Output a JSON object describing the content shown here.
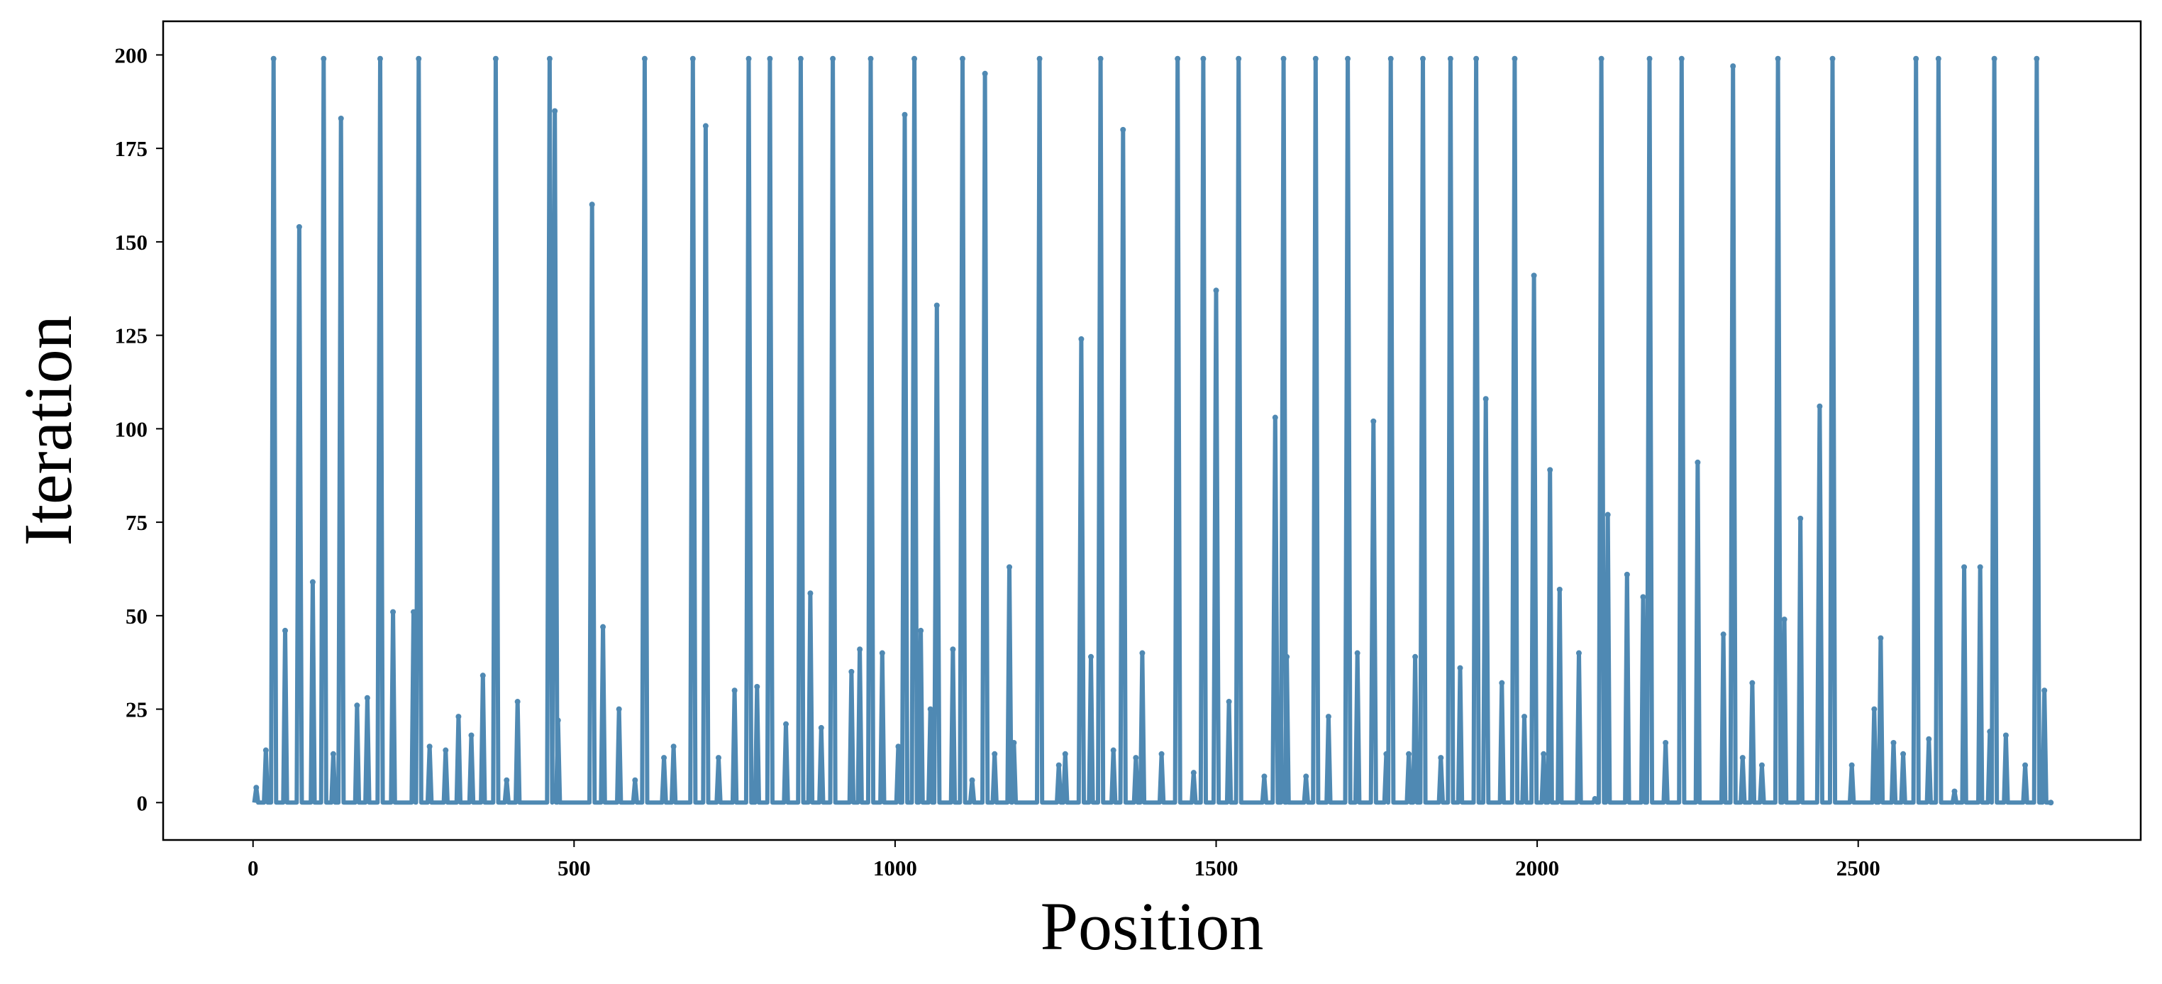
{
  "chart_data": {
    "type": "line",
    "title": "",
    "xlabel": "Position",
    "ylabel": "Iteration",
    "xlim": [
      -140,
      2940
    ],
    "ylim": [
      -10,
      209
    ],
    "xticks": [
      0,
      500,
      1000,
      1500,
      2000,
      2500
    ],
    "yticks": [
      0,
      25,
      50,
      75,
      100,
      125,
      150,
      175,
      200
    ],
    "grid": false,
    "legend": "none",
    "marker": "dot",
    "color": "#4f89b3",
    "peaks": [
      {
        "x": 5,
        "y": 4
      },
      {
        "x": 20,
        "y": 14
      },
      {
        "x": 32,
        "y": 199
      },
      {
        "x": 50,
        "y": 46
      },
      {
        "x": 72,
        "y": 154
      },
      {
        "x": 93,
        "y": 59
      },
      {
        "x": 110,
        "y": 199
      },
      {
        "x": 125,
        "y": 13
      },
      {
        "x": 137,
        "y": 183
      },
      {
        "x": 162,
        "y": 26
      },
      {
        "x": 178,
        "y": 28
      },
      {
        "x": 198,
        "y": 199
      },
      {
        "x": 218,
        "y": 51
      },
      {
        "x": 250,
        "y": 51
      },
      {
        "x": 258,
        "y": 199
      },
      {
        "x": 275,
        "y": 15
      },
      {
        "x": 300,
        "y": 14
      },
      {
        "x": 320,
        "y": 23
      },
      {
        "x": 340,
        "y": 18
      },
      {
        "x": 358,
        "y": 34
      },
      {
        "x": 378,
        "y": 199
      },
      {
        "x": 395,
        "y": 6
      },
      {
        "x": 412,
        "y": 27
      },
      {
        "x": 462,
        "y": 199
      },
      {
        "x": 470,
        "y": 185
      },
      {
        "x": 475,
        "y": 22
      },
      {
        "x": 528,
        "y": 160
      },
      {
        "x": 545,
        "y": 47
      },
      {
        "x": 570,
        "y": 25
      },
      {
        "x": 595,
        "y": 6
      },
      {
        "x": 610,
        "y": 199
      },
      {
        "x": 640,
        "y": 12
      },
      {
        "x": 655,
        "y": 15
      },
      {
        "x": 685,
        "y": 199
      },
      {
        "x": 705,
        "y": 181
      },
      {
        "x": 725,
        "y": 12
      },
      {
        "x": 750,
        "y": 30
      },
      {
        "x": 772,
        "y": 199
      },
      {
        "x": 785,
        "y": 31
      },
      {
        "x": 805,
        "y": 199
      },
      {
        "x": 830,
        "y": 21
      },
      {
        "x": 853,
        "y": 199
      },
      {
        "x": 868,
        "y": 56
      },
      {
        "x": 885,
        "y": 20
      },
      {
        "x": 903,
        "y": 199
      },
      {
        "x": 932,
        "y": 35
      },
      {
        "x": 945,
        "y": 41
      },
      {
        "x": 962,
        "y": 199
      },
      {
        "x": 980,
        "y": 40
      },
      {
        "x": 1005,
        "y": 15
      },
      {
        "x": 1015,
        "y": 184
      },
      {
        "x": 1030,
        "y": 199
      },
      {
        "x": 1040,
        "y": 46
      },
      {
        "x": 1055,
        "y": 25
      },
      {
        "x": 1065,
        "y": 133
      },
      {
        "x": 1090,
        "y": 41
      },
      {
        "x": 1105,
        "y": 199
      },
      {
        "x": 1120,
        "y": 6
      },
      {
        "x": 1140,
        "y": 195
      },
      {
        "x": 1155,
        "y": 13
      },
      {
        "x": 1178,
        "y": 63
      },
      {
        "x": 1185,
        "y": 16
      },
      {
        "x": 1225,
        "y": 199
      },
      {
        "x": 1255,
        "y": 10
      },
      {
        "x": 1265,
        "y": 13
      },
      {
        "x": 1290,
        "y": 124
      },
      {
        "x": 1305,
        "y": 39
      },
      {
        "x": 1320,
        "y": 199
      },
      {
        "x": 1340,
        "y": 14
      },
      {
        "x": 1355,
        "y": 180
      },
      {
        "x": 1375,
        "y": 12
      },
      {
        "x": 1385,
        "y": 40
      },
      {
        "x": 1415,
        "y": 13
      },
      {
        "x": 1440,
        "y": 199
      },
      {
        "x": 1465,
        "y": 8
      },
      {
        "x": 1480,
        "y": 199
      },
      {
        "x": 1500,
        "y": 137
      },
      {
        "x": 1520,
        "y": 27
      },
      {
        "x": 1535,
        "y": 199
      },
      {
        "x": 1575,
        "y": 7
      },
      {
        "x": 1592,
        "y": 103
      },
      {
        "x": 1605,
        "y": 199
      },
      {
        "x": 1610,
        "y": 39
      },
      {
        "x": 1640,
        "y": 7
      },
      {
        "x": 1655,
        "y": 199
      },
      {
        "x": 1675,
        "y": 23
      },
      {
        "x": 1705,
        "y": 199
      },
      {
        "x": 1720,
        "y": 40
      },
      {
        "x": 1745,
        "y": 102
      },
      {
        "x": 1765,
        "y": 13
      },
      {
        "x": 1772,
        "y": 199
      },
      {
        "x": 1800,
        "y": 13
      },
      {
        "x": 1810,
        "y": 39
      },
      {
        "x": 1822,
        "y": 199
      },
      {
        "x": 1850,
        "y": 12
      },
      {
        "x": 1865,
        "y": 199
      },
      {
        "x": 1880,
        "y": 36
      },
      {
        "x": 1905,
        "y": 199
      },
      {
        "x": 1920,
        "y": 108
      },
      {
        "x": 1945,
        "y": 32
      },
      {
        "x": 1965,
        "y": 199
      },
      {
        "x": 1980,
        "y": 23
      },
      {
        "x": 1995,
        "y": 141
      },
      {
        "x": 2010,
        "y": 13
      },
      {
        "x": 2020,
        "y": 89
      },
      {
        "x": 2035,
        "y": 57
      },
      {
        "x": 2065,
        "y": 40
      },
      {
        "x": 2090,
        "y": 1
      },
      {
        "x": 2100,
        "y": 199
      },
      {
        "x": 2110,
        "y": 77
      },
      {
        "x": 2140,
        "y": 61
      },
      {
        "x": 2165,
        "y": 55
      },
      {
        "x": 2175,
        "y": 199
      },
      {
        "x": 2200,
        "y": 16
      },
      {
        "x": 2225,
        "y": 199
      },
      {
        "x": 2250,
        "y": 91
      },
      {
        "x": 2290,
        "y": 45
      },
      {
        "x": 2305,
        "y": 197
      },
      {
        "x": 2320,
        "y": 12
      },
      {
        "x": 2335,
        "y": 32
      },
      {
        "x": 2350,
        "y": 10
      },
      {
        "x": 2375,
        "y": 199
      },
      {
        "x": 2385,
        "y": 49
      },
      {
        "x": 2410,
        "y": 76
      },
      {
        "x": 2440,
        "y": 106
      },
      {
        "x": 2460,
        "y": 199
      },
      {
        "x": 2490,
        "y": 10
      },
      {
        "x": 2525,
        "y": 25
      },
      {
        "x": 2535,
        "y": 44
      },
      {
        "x": 2555,
        "y": 16
      },
      {
        "x": 2570,
        "y": 13
      },
      {
        "x": 2590,
        "y": 199
      },
      {
        "x": 2610,
        "y": 17
      },
      {
        "x": 2625,
        "y": 199
      },
      {
        "x": 2650,
        "y": 3
      },
      {
        "x": 2665,
        "y": 63
      },
      {
        "x": 2690,
        "y": 63
      },
      {
        "x": 2705,
        "y": 19
      },
      {
        "x": 2712,
        "y": 199
      },
      {
        "x": 2730,
        "y": 18
      },
      {
        "x": 2760,
        "y": 10
      },
      {
        "x": 2778,
        "y": 199
      },
      {
        "x": 2790,
        "y": 30
      },
      {
        "x": 2800,
        "y": 0
      }
    ]
  }
}
